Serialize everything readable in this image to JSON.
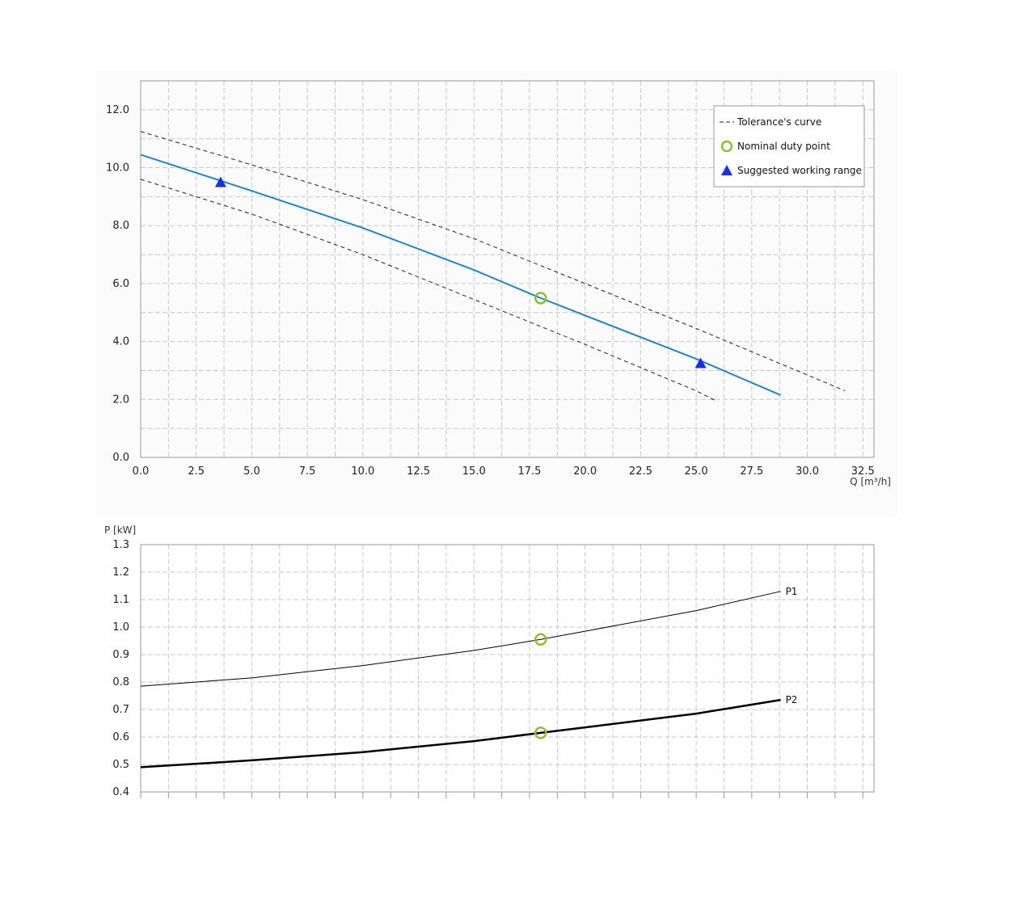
{
  "colors": {
    "flow_curve": "#1f87c8",
    "tolerance": "#222222",
    "duty_point": "#8bbf3a",
    "working_range": "#1a2fe0",
    "grid": "#c8c8c8",
    "frame": "#999999",
    "panel_bg": "#fbfbfb"
  },
  "chart_data": [
    {
      "type": "line",
      "title": "",
      "xlabel": "Q [m³/h]",
      "ylabel": "",
      "xlim": [
        0,
        33
      ],
      "ylim": [
        0,
        13
      ],
      "x_ticks": [
        0,
        2.5,
        5,
        7.5,
        10,
        12.5,
        15,
        17.5,
        20,
        22.5,
        25,
        27.5,
        30,
        32.5
      ],
      "x_tick_labels": [
        "0.0",
        "2.5",
        "5.0",
        "7.5",
        "10.0",
        "12.5",
        "15.0",
        "17.5",
        "20.0",
        "22.5",
        "25.0",
        "27.5",
        "30.0",
        "32.5"
      ],
      "y_ticks": [
        0,
        2,
        4,
        6,
        8,
        10,
        12
      ],
      "y_tick_labels": [
        "0.0",
        "2.0",
        "4.0",
        "6.0",
        "8.0",
        "10.0",
        "12.0"
      ],
      "grid": true,
      "legend_position": "top-right",
      "legend": [
        {
          "label": "Tolerance's curve",
          "marker": "dashed-line"
        },
        {
          "label": "Nominal duty point",
          "marker": "hollow-circle"
        },
        {
          "label": "Suggested working range",
          "marker": "triangle"
        }
      ],
      "series": [
        {
          "style": "solid",
          "x": [
            0,
            5,
            10,
            15,
            18,
            20,
            25,
            28.8
          ],
          "y": [
            10.45,
            9.2,
            7.92,
            6.47,
            5.5,
            4.9,
            3.4,
            2.15
          ]
        },
        {
          "style": "dashed",
          "x": [
            0,
            5,
            10,
            15,
            20,
            25,
            31.7
          ],
          "y": [
            11.25,
            10.1,
            8.9,
            7.55,
            6.0,
            4.45,
            2.3
          ]
        },
        {
          "style": "dashed",
          "x": [
            0,
            5,
            10,
            15,
            20,
            25,
            25.9
          ],
          "y": [
            9.6,
            8.4,
            7.0,
            5.45,
            3.9,
            2.3,
            1.95
          ]
        }
      ],
      "duty_point": {
        "x": 18.0,
        "y": 5.5
      },
      "working_range_points": [
        {
          "x": 3.6,
          "y": 9.5
        },
        {
          "x": 25.2,
          "y": 3.25
        }
      ]
    },
    {
      "type": "line",
      "title": "",
      "xlabel": "",
      "ylabel": "P [kW]",
      "xlim": [
        0,
        33
      ],
      "ylim": [
        0.4,
        1.3
      ],
      "y_ticks": [
        0.4,
        0.5,
        0.6,
        0.7,
        0.8,
        0.9,
        1.0,
        1.1,
        1.2,
        1.3
      ],
      "y_tick_labels": [
        "0.4",
        "0.5",
        "0.6",
        "0.7",
        "0.8",
        "0.9",
        "1.0",
        "1.1",
        "1.2",
        "1.3"
      ],
      "x_ticks": [
        0,
        1.25,
        2.5,
        3.75,
        5,
        6.25,
        7.5,
        8.75,
        10,
        11.25,
        12.5,
        13.75,
        15,
        16.25,
        17.5,
        18.75,
        20,
        21.25,
        22.5,
        23.75,
        25,
        26.25,
        27.5,
        28.75,
        30,
        31.25,
        32.5
      ],
      "grid": true,
      "series": [
        {
          "name": "P1",
          "style": "thin",
          "x": [
            0,
            5,
            10,
            15,
            18,
            20,
            25,
            28.8
          ],
          "y": [
            0.785,
            0.815,
            0.86,
            0.915,
            0.955,
            0.985,
            1.06,
            1.13
          ]
        },
        {
          "name": "P2",
          "style": "thick",
          "x": [
            0,
            5,
            10,
            15,
            18,
            20,
            25,
            28.8
          ],
          "y": [
            0.49,
            0.515,
            0.545,
            0.585,
            0.615,
            0.635,
            0.685,
            0.735
          ]
        }
      ],
      "duty_points": [
        {
          "x": 18.0,
          "y": 0.955
        },
        {
          "x": 18.0,
          "y": 0.615
        }
      ]
    }
  ]
}
